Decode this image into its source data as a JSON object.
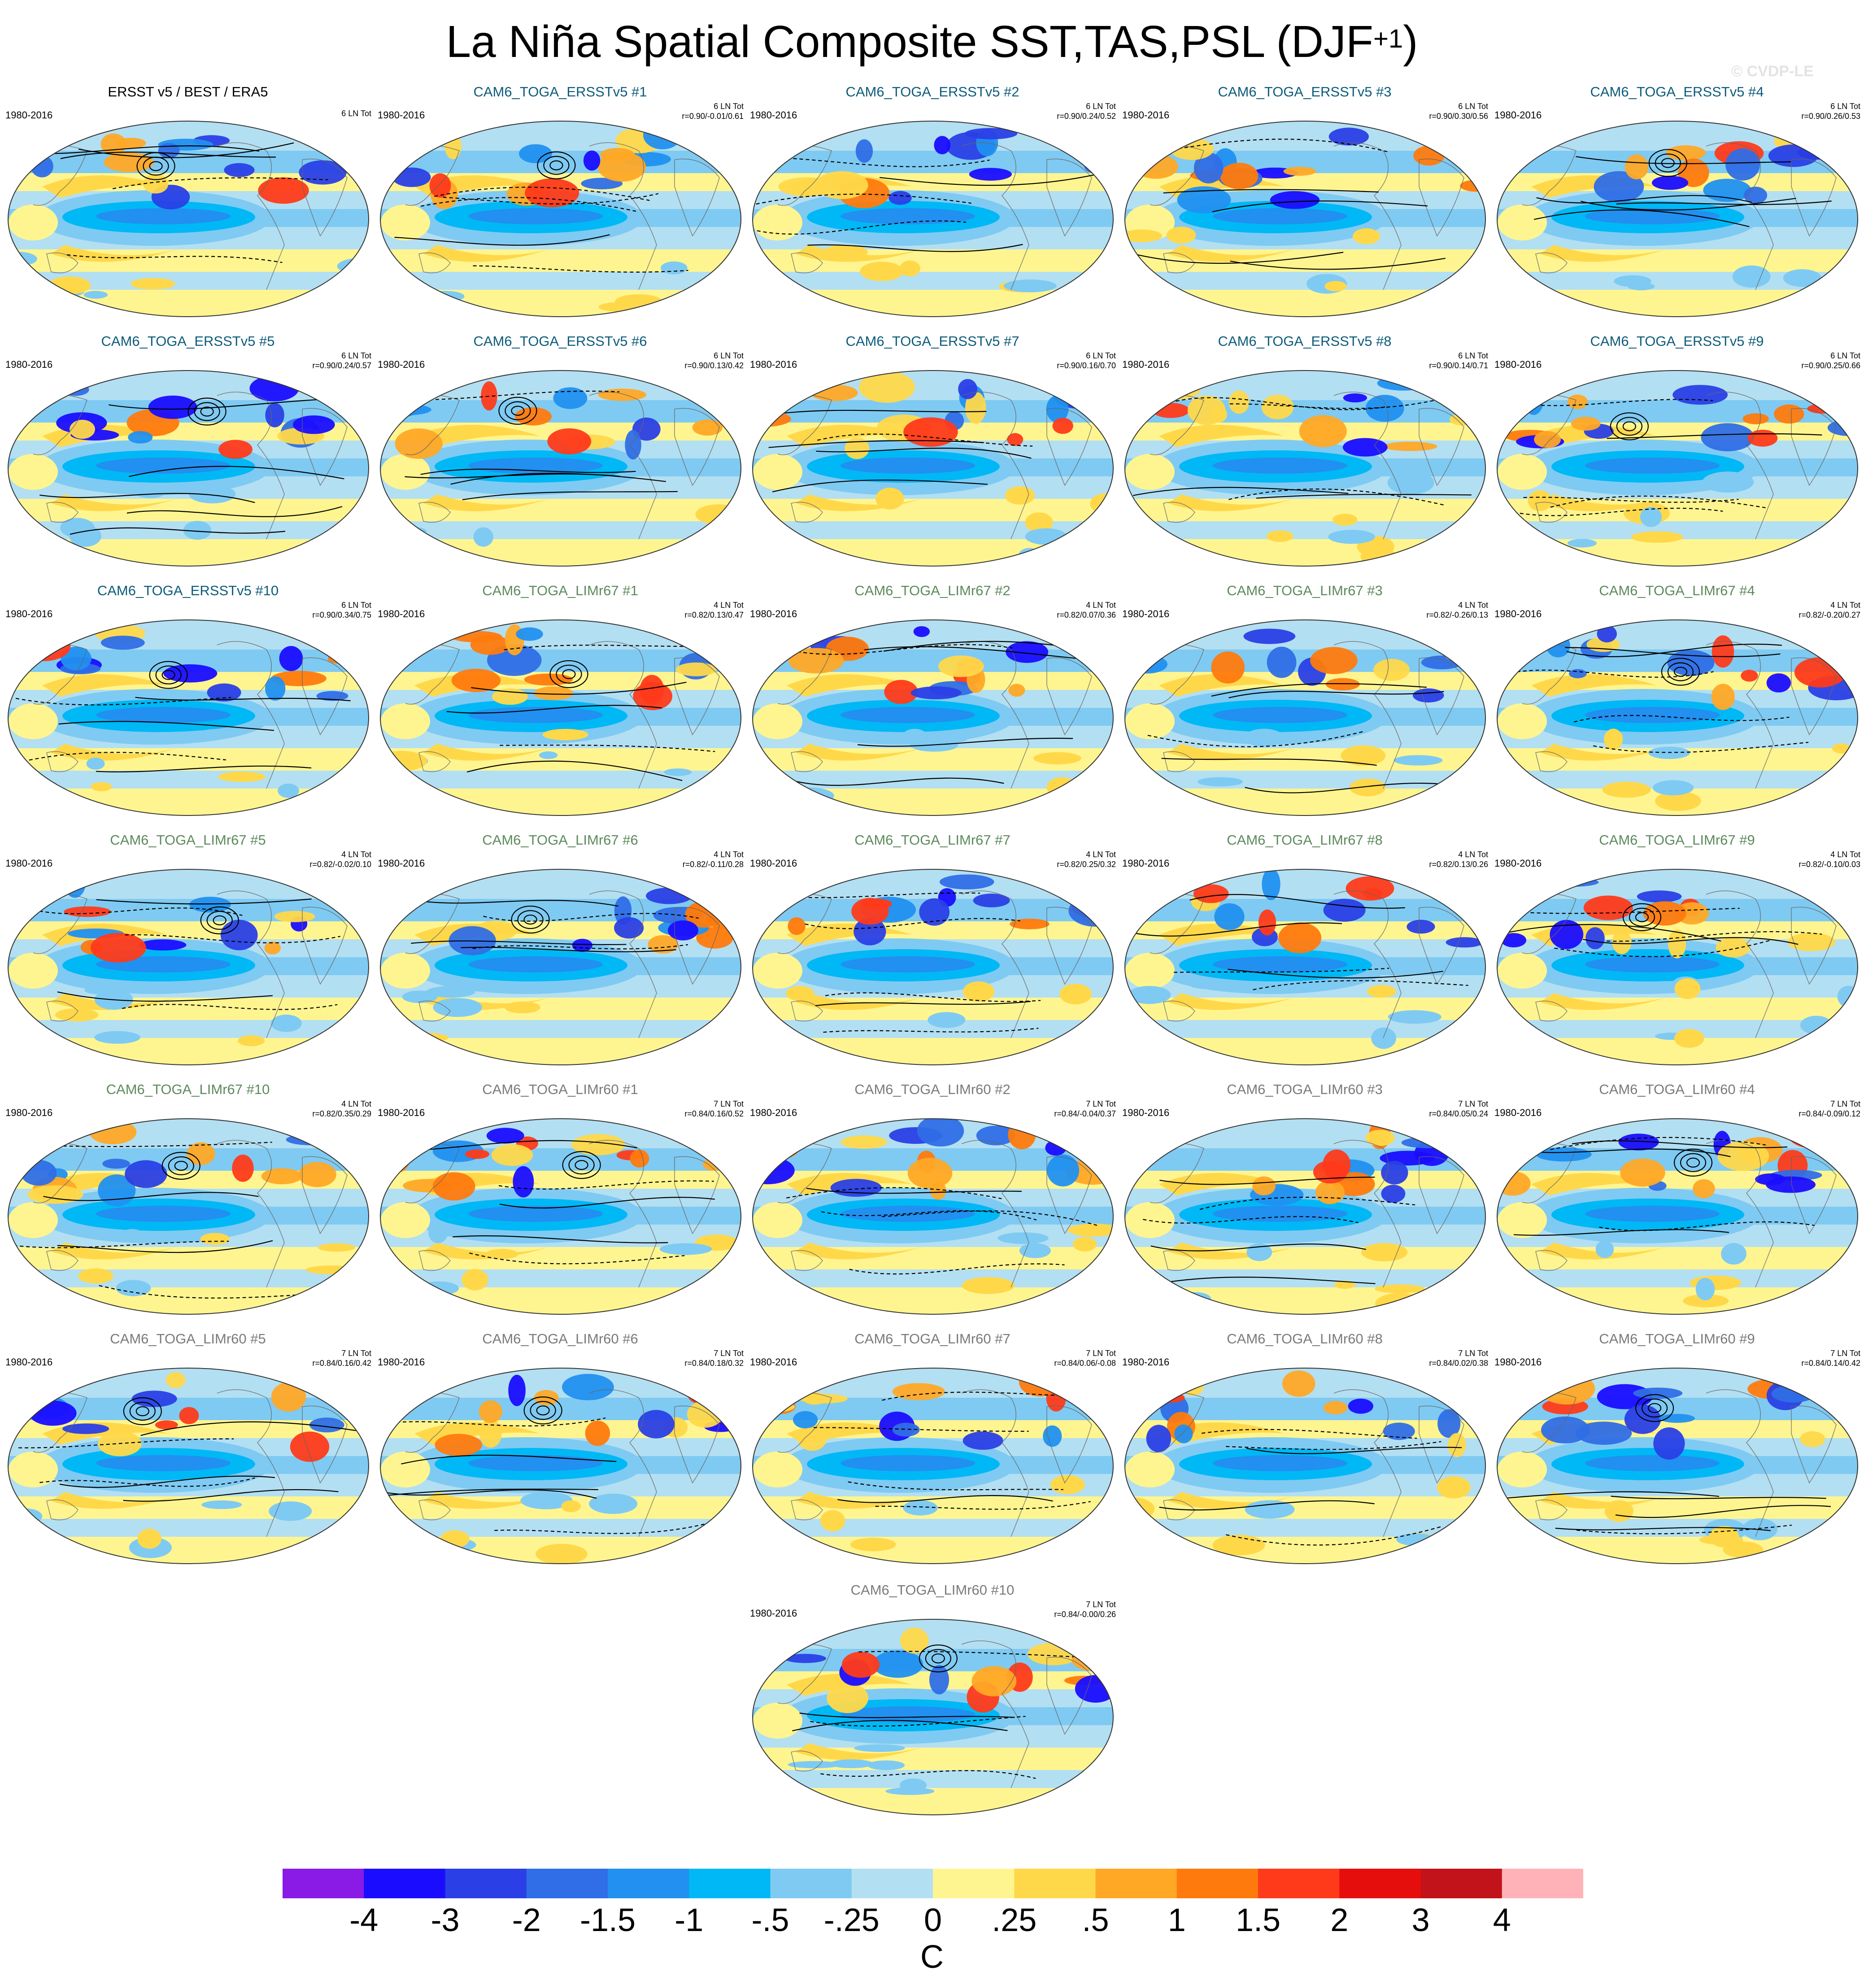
{
  "title": {
    "main": "La Niña Spatial Composite SST,TAS,PSL (DJF",
    "sup": "+1",
    "tail": ")"
  },
  "watermark": "© CVDP-LE",
  "colors": {
    "ersst": "#0d5b7a",
    "limr67": "#5c8a5c",
    "limr60": "#7a7a7a",
    "obs": "#000000"
  },
  "colorbar": {
    "colors": [
      "#8a1be6",
      "#1a0dff",
      "#2a3fe6",
      "#2f6ee6",
      "#2190f0",
      "#00b8f5",
      "#7fcaf2",
      "#b3dff2",
      "#fff590",
      "#ffd84a",
      "#ffa826",
      "#ff7a0d",
      "#ff3a1a",
      "#e60d0d",
      "#c2121a",
      "#ffb3b8"
    ],
    "labels": [
      "-4",
      "-3",
      "-2",
      "-1.5",
      "-1",
      "-.5",
      "-.25",
      "0",
      ".25",
      ".5",
      "1",
      "1.5",
      "2",
      "3",
      "4"
    ],
    "units": "C"
  },
  "chart_data": {
    "type": "heatmap",
    "title": "La Niña Spatial Composite SST,TAS,PSL (DJF+1)",
    "variable_units": "C",
    "levels": [
      -4,
      -3,
      -2,
      -1.5,
      -1,
      -0.5,
      -0.25,
      0,
      0.25,
      0.5,
      1,
      1.5,
      2,
      3,
      4
    ],
    "panels": [
      {
        "title": "ERSST v5 / BEST / ERA5",
        "period": "1980-2016",
        "count": "6 LN Tot",
        "stats": "",
        "group": "obs",
        "pattern": 0
      },
      {
        "title": "CAM6_TOGA_ERSSTv5 #1",
        "period": "1980-2016",
        "count": "6 LN Tot",
        "stats": "r=0.90/-0.01/0.61",
        "group": "ersst",
        "pattern": 1
      },
      {
        "title": "CAM6_TOGA_ERSSTv5 #2",
        "period": "1980-2016",
        "count": "6 LN Tot",
        "stats": "r=0.90/0.24/0.52",
        "group": "ersst",
        "pattern": 2
      },
      {
        "title": "CAM6_TOGA_ERSSTv5 #3",
        "period": "1980-2016",
        "count": "6 LN Tot",
        "stats": "r=0.90/0.30/0.56",
        "group": "ersst",
        "pattern": 3
      },
      {
        "title": "CAM6_TOGA_ERSSTv5 #4",
        "period": "1980-2016",
        "count": "6 LN Tot",
        "stats": "r=0.90/0.26/0.53",
        "group": "ersst",
        "pattern": 4
      },
      {
        "title": "CAM6_TOGA_ERSSTv5 #5",
        "period": "1980-2016",
        "count": "6 LN Tot",
        "stats": "r=0.90/0.24/0.57",
        "group": "ersst",
        "pattern": 5
      },
      {
        "title": "CAM6_TOGA_ERSSTv5 #6",
        "period": "1980-2016",
        "count": "6 LN Tot",
        "stats": "r=0.90/0.13/0.42",
        "group": "ersst",
        "pattern": 6
      },
      {
        "title": "CAM6_TOGA_ERSSTv5 #7",
        "period": "1980-2016",
        "count": "6 LN Tot",
        "stats": "r=0.90/0.16/0.70",
        "group": "ersst",
        "pattern": 7
      },
      {
        "title": "CAM6_TOGA_ERSSTv5 #8",
        "period": "1980-2016",
        "count": "6 LN Tot",
        "stats": "r=0.90/0.14/0.71",
        "group": "ersst",
        "pattern": 8
      },
      {
        "title": "CAM6_TOGA_ERSSTv5 #9",
        "period": "1980-2016",
        "count": "6 LN Tot",
        "stats": "r=0.90/0.25/0.66",
        "group": "ersst",
        "pattern": 9
      },
      {
        "title": "CAM6_TOGA_ERSSTv5 #10",
        "period": "1980-2016",
        "count": "6 LN Tot",
        "stats": "r=0.90/0.34/0.75",
        "group": "ersst",
        "pattern": 10
      },
      {
        "title": "CAM6_TOGA_LIMr67 #1",
        "period": "1980-2016",
        "count": "4 LN Tot",
        "stats": "r=0.82/0.13/0.47",
        "group": "limr67",
        "pattern": 11
      },
      {
        "title": "CAM6_TOGA_LIMr67 #2",
        "period": "1980-2016",
        "count": "4 LN Tot",
        "stats": "r=0.82/0.07/0.36",
        "group": "limr67",
        "pattern": 12
      },
      {
        "title": "CAM6_TOGA_LIMr67 #3",
        "period": "1980-2016",
        "count": "4 LN Tot",
        "stats": "r=0.82/-0.26/0.13",
        "group": "limr67",
        "pattern": 13
      },
      {
        "title": "CAM6_TOGA_LIMr67 #4",
        "period": "1980-2016",
        "count": "4 LN Tot",
        "stats": "r=0.82/-0.20/0.27",
        "group": "limr67",
        "pattern": 14
      },
      {
        "title": "CAM6_TOGA_LIMr67 #5",
        "period": "1980-2016",
        "count": "4 LN Tot",
        "stats": "r=0.82/-0.02/0.10",
        "group": "limr67",
        "pattern": 15
      },
      {
        "title": "CAM6_TOGA_LIMr67 #6",
        "period": "1980-2016",
        "count": "4 LN Tot",
        "stats": "r=0.82/-0.11/0.28",
        "group": "limr67",
        "pattern": 16
      },
      {
        "title": "CAM6_TOGA_LIMr67 #7",
        "period": "1980-2016",
        "count": "4 LN Tot",
        "stats": "r=0.82/0.25/0.32",
        "group": "limr67",
        "pattern": 17
      },
      {
        "title": "CAM6_TOGA_LIMr67 #8",
        "period": "1980-2016",
        "count": "4 LN Tot",
        "stats": "r=0.82/0.13/0.26",
        "group": "limr67",
        "pattern": 18
      },
      {
        "title": "CAM6_TOGA_LIMr67 #9",
        "period": "1980-2016",
        "count": "4 LN Tot",
        "stats": "r=0.82/-0.10/0.03",
        "group": "limr67",
        "pattern": 19
      },
      {
        "title": "CAM6_TOGA_LIMr67 #10",
        "period": "1980-2016",
        "count": "4 LN Tot",
        "stats": "r=0.82/0.35/0.29",
        "group": "limr67",
        "pattern": 20
      },
      {
        "title": "CAM6_TOGA_LIMr60 #1",
        "period": "1980-2016",
        "count": "7 LN Tot",
        "stats": "r=0.84/0.16/0.52",
        "group": "limr60",
        "pattern": 21
      },
      {
        "title": "CAM6_TOGA_LIMr60 #2",
        "period": "1980-2016",
        "count": "7 LN Tot",
        "stats": "r=0.84/-0.04/0.37",
        "group": "limr60",
        "pattern": 22
      },
      {
        "title": "CAM6_TOGA_LIMr60 #3",
        "period": "1980-2016",
        "count": "7 LN Tot",
        "stats": "r=0.84/0.05/0.24",
        "group": "limr60",
        "pattern": 23
      },
      {
        "title": "CAM6_TOGA_LIMr60 #4",
        "period": "1980-2016",
        "count": "7 LN Tot",
        "stats": "r=0.84/-0.09/0.12",
        "group": "limr60",
        "pattern": 24
      },
      {
        "title": "CAM6_TOGA_LIMr60 #5",
        "period": "1980-2016",
        "count": "7 LN Tot",
        "stats": "r=0.84/0.16/0.42",
        "group": "limr60",
        "pattern": 25
      },
      {
        "title": "CAM6_TOGA_LIMr60 #6",
        "period": "1980-2016",
        "count": "7 LN Tot",
        "stats": "r=0.84/0.18/0.32",
        "group": "limr60",
        "pattern": 26
      },
      {
        "title": "CAM6_TOGA_LIMr60 #7",
        "period": "1980-2016",
        "count": "7 LN Tot",
        "stats": "r=0.84/0.06/-0.08",
        "group": "limr60",
        "pattern": 27
      },
      {
        "title": "CAM6_TOGA_LIMr60 #8",
        "period": "1980-2016",
        "count": "7 LN Tot",
        "stats": "r=0.84/0.02/0.38",
        "group": "limr60",
        "pattern": 28
      },
      {
        "title": "CAM6_TOGA_LIMr60 #9",
        "period": "1980-2016",
        "count": "7 LN Tot",
        "stats": "r=0.84/0.14/0.42",
        "group": "limr60",
        "pattern": 29
      },
      {
        "title": "CAM6_TOGA_LIMr60 #10",
        "period": "1980-2016",
        "count": "7 LN Tot",
        "stats": "r=0.84/-0.00/0.26",
        "group": "limr60",
        "pattern": 30
      }
    ]
  }
}
